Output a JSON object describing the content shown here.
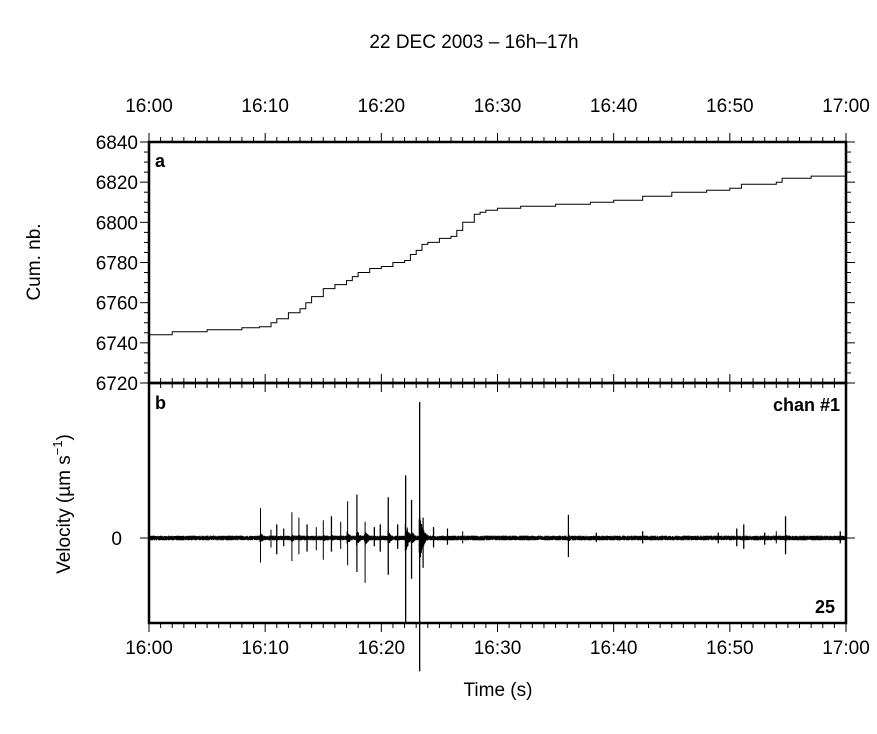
{
  "chart_data": [
    {
      "panel": "a",
      "type": "line",
      "title": "22 DEC 2003 – 16h–17h",
      "top_axis_tick_labels": [
        "16:00",
        "16:10",
        "16:20",
        "16:30",
        "16:40",
        "16:50",
        "17:00"
      ],
      "ylabel": "Cum. nb.",
      "ylim": [
        6720,
        6840
      ],
      "y_tick_labels": [
        "6720",
        "6740",
        "6760",
        "6780",
        "6800",
        "6820",
        "6840"
      ],
      "x_unit": "minutes after 16:00",
      "xlim": [
        0,
        60
      ],
      "series": [
        {
          "x": [
            0,
            2,
            5,
            8,
            9.5,
            10.5,
            11,
            12,
            13,
            13.5,
            14,
            15,
            16,
            17,
            17.5,
            18,
            19,
            20,
            21,
            22,
            22.5,
            23,
            23.5,
            24,
            25,
            26,
            26.5,
            27,
            28,
            28.5,
            29,
            30,
            32,
            35,
            38,
            40,
            42.5,
            45,
            48,
            50,
            51,
            54,
            54.5,
            57,
            60
          ],
          "y": [
            6744,
            6745.5,
            6746.5,
            6747.5,
            6748,
            6750,
            6752,
            6755,
            6757,
            6760,
            6763,
            6767,
            6769,
            6771,
            6773,
            6775,
            6777,
            6778,
            6780,
            6781,
            6784,
            6786,
            6789,
            6790,
            6792,
            6793,
            6796,
            6800,
            6804,
            6805,
            6806,
            6807,
            6808,
            6809,
            6810,
            6811,
            6813,
            6815,
            6816,
            6817,
            6819,
            6820,
            6822,
            6823,
            6825
          ]
        }
      ]
    },
    {
      "panel": "b",
      "type": "line",
      "ylabel": "Velocity (µm s⁻¹)",
      "ylabel_parts": [
        "Velocity (µm s",
        "−1",
        ")"
      ],
      "y_tick_labels": [
        "0"
      ],
      "ylim": [
        -1,
        1
      ],
      "xlabel": "Time (s)",
      "x_tick_labels": [
        "16:00",
        "16:10",
        "16:20",
        "16:30",
        "16:40",
        "16:50",
        "17:00"
      ],
      "x_unit": "minutes after 16:00",
      "xlim": [
        0,
        60
      ],
      "annotations": [
        "chan #1",
        "25"
      ],
      "background_noise_amplitude": 0.012,
      "spikes": [
        {
          "t": 9.6,
          "up": 0.22,
          "down": 0.18
        },
        {
          "t": 10.5,
          "up": 0.06,
          "down": 0.07
        },
        {
          "t": 11.0,
          "up": 0.1,
          "down": 0.12
        },
        {
          "t": 11.6,
          "up": 0.07,
          "down": 0.06
        },
        {
          "t": 12.3,
          "up": 0.19,
          "down": 0.17
        },
        {
          "t": 12.9,
          "up": 0.15,
          "down": 0.12
        },
        {
          "t": 13.6,
          "up": 0.1,
          "down": 0.1
        },
        {
          "t": 14.4,
          "up": 0.08,
          "down": 0.09
        },
        {
          "t": 15.0,
          "up": 0.13,
          "down": 0.16
        },
        {
          "t": 15.7,
          "up": 0.16,
          "down": 0.1
        },
        {
          "t": 16.5,
          "up": 0.12,
          "down": 0.08
        },
        {
          "t": 17.1,
          "up": 0.27,
          "down": 0.2
        },
        {
          "t": 17.9,
          "up": 0.32,
          "down": 0.25
        },
        {
          "t": 18.6,
          "up": 0.12,
          "down": 0.33
        },
        {
          "t": 19.4,
          "up": 0.08,
          "down": 0.06
        },
        {
          "t": 19.9,
          "up": 0.1,
          "down": 0.1
        },
        {
          "t": 20.6,
          "up": 0.3,
          "down": 0.27
        },
        {
          "t": 21.4,
          "up": 0.1,
          "down": 0.08
        },
        {
          "t": 22.1,
          "up": 0.46,
          "down": 0.62
        },
        {
          "t": 22.6,
          "up": 0.28,
          "down": 0.3
        },
        {
          "t": 23.3,
          "up": 1.0,
          "down": 0.98
        },
        {
          "t": 23.6,
          "up": 0.15,
          "down": 0.22
        },
        {
          "t": 24.5,
          "up": 0.08,
          "down": 0.07
        },
        {
          "t": 25.7,
          "up": 0.07,
          "down": 0.05
        },
        {
          "t": 27.0,
          "up": 0.05,
          "down": 0.04
        },
        {
          "t": 36.1,
          "up": 0.17,
          "down": 0.14
        },
        {
          "t": 38.5,
          "up": 0.04,
          "down": 0.03
        },
        {
          "t": 42.5,
          "up": 0.05,
          "down": 0.04
        },
        {
          "t": 49.0,
          "up": 0.04,
          "down": 0.04
        },
        {
          "t": 50.6,
          "up": 0.07,
          "down": 0.06
        },
        {
          "t": 51.2,
          "up": 0.1,
          "down": 0.08
        },
        {
          "t": 53.0,
          "up": 0.04,
          "down": 0.05
        },
        {
          "t": 54.0,
          "up": 0.05,
          "down": 0.04
        },
        {
          "t": 54.8,
          "up": 0.16,
          "down": 0.12
        },
        {
          "t": 59.5,
          "up": 0.05,
          "down": 0.04
        }
      ]
    }
  ]
}
